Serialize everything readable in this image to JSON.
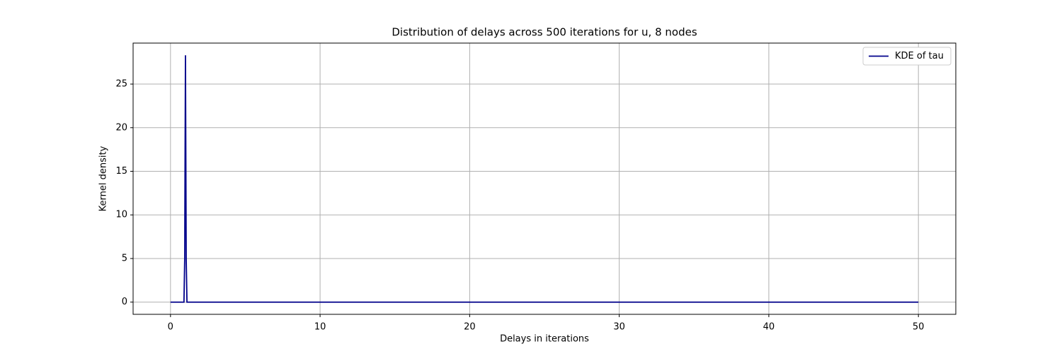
{
  "chart_data": {
    "type": "line",
    "title": "Distribution of delays across 500 iterations for u, 8 nodes",
    "x_label": "Delays in iterations",
    "y_label": "Kernel density",
    "x": [
      0,
      0.9,
      0.95,
      1.0,
      1.05,
      1.1,
      2,
      50
    ],
    "series": [
      {
        "name": "KDE of tau",
        "color": "#00008b",
        "values": [
          0,
          0,
          5,
          28.3,
          5,
          0,
          0,
          0
        ]
      }
    ],
    "xlim": [
      -2.5,
      52.5
    ],
    "xticks": [
      0,
      10,
      20,
      30,
      40,
      50
    ],
    "ylim": [
      -1.4,
      29.7
    ],
    "yticks": [
      0,
      5,
      10,
      15,
      20,
      25
    ],
    "grid": true,
    "legend": "upper right"
  }
}
